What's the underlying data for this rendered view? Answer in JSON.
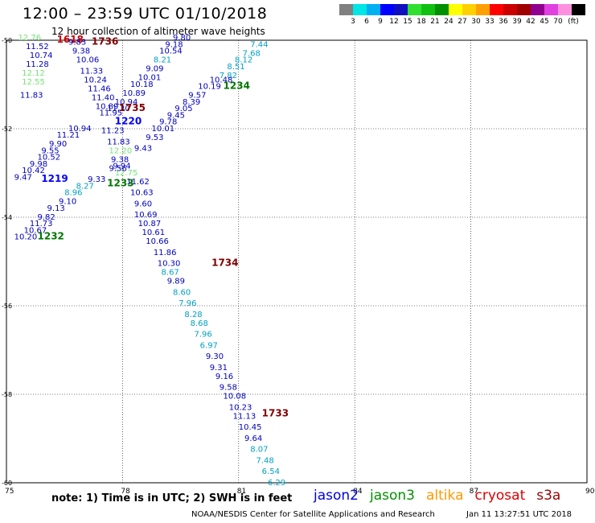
{
  "title": "12:00 – 23:59 UTC 01/10/2018",
  "subtitle": "12 hour collection of altimeter wave heights",
  "colorbar": {
    "colors": [
      "#808080",
      "#00e5e5",
      "#00b0f0",
      "#0000ff",
      "#1010c0",
      "#30e030",
      "#10c010",
      "#009000",
      "#ffff00",
      "#ffd000",
      "#ffa000",
      "#ff0000",
      "#cc0000",
      "#a00000",
      "#900090",
      "#e040e0",
      "#ff90e0",
      "#000000"
    ],
    "labels": [
      "3",
      "6",
      "9",
      "12",
      "15",
      "18",
      "21",
      "24",
      "27",
      "30",
      "33",
      "36",
      "39",
      "42",
      "45",
      "70",
      "(ft)"
    ]
  },
  "map": {
    "x_ticks": [
      "75",
      "78",
      "81",
      "84",
      "87",
      "90"
    ],
    "y_ticks": [
      "-50",
      "-52",
      "-54",
      "-56",
      "-58",
      "-60"
    ]
  },
  "passes": [
    {
      "label": "1618",
      "color": "#cc0000",
      "pos": [
        76.3,
        -50.05
      ],
      "readings": [
        {
          "v": "12.76",
          "c": "#77e077",
          "p": [
            75.3,
            -50.0
          ]
        }
      ]
    },
    {
      "label": "1736",
      "color": "#800000",
      "pos": [
        77.2,
        -50.1
      ],
      "readings": [
        {
          "v": "11.52",
          "c": "#0000bb",
          "p": [
            75.5,
            -50.2
          ]
        },
        {
          "v": "10.74",
          "c": "#0000bb",
          "p": [
            75.6,
            -50.4
          ]
        },
        {
          "v": "11.28",
          "c": "#0000bb",
          "p": [
            75.5,
            -50.6
          ]
        },
        {
          "v": "12.12",
          "c": "#77e077",
          "p": [
            75.4,
            -50.8
          ]
        },
        {
          "v": "12.55",
          "c": "#77e077",
          "p": [
            75.4,
            -51.0
          ]
        },
        {
          "v": "11.83",
          "c": "#0000bb",
          "p": [
            75.35,
            -51.3
          ]
        },
        {
          "v": "9.83",
          "c": "#0000bb",
          "p": [
            76.6,
            -50.1
          ]
        },
        {
          "v": "9.38",
          "c": "#0000bb",
          "p": [
            76.7,
            -50.3
          ]
        },
        {
          "v": "10.06",
          "c": "#0000bb",
          "p": [
            76.8,
            -50.5
          ]
        },
        {
          "v": "11.33",
          "c": "#0000bb",
          "p": [
            76.9,
            -50.75
          ]
        },
        {
          "v": "10.24",
          "c": "#0000bb",
          "p": [
            77.0,
            -50.95
          ]
        },
        {
          "v": "11.46",
          "c": "#0000bb",
          "p": [
            77.1,
            -51.15
          ]
        },
        {
          "v": "11.40",
          "c": "#0000bb",
          "p": [
            77.2,
            -51.35
          ]
        },
        {
          "v": "10.89",
          "c": "#0000bb",
          "p": [
            77.3,
            -51.55
          ]
        },
        {
          "v": "11.95",
          "c": "#0000bb",
          "p": [
            77.4,
            -51.7
          ]
        },
        {
          "v": "11.23",
          "c": "#0000bb",
          "p": [
            77.45,
            -52.1
          ]
        },
        {
          "v": "11.83",
          "c": "#0000bb",
          "p": [
            77.6,
            -52.35
          ]
        },
        {
          "v": "12.20",
          "c": "#77e077",
          "p": [
            77.65,
            -52.55
          ]
        },
        {
          "v": "9.38",
          "c": "#0000bb",
          "p": [
            77.7,
            -52.75
          ]
        },
        {
          "v": "9.94",
          "c": "#0000bb",
          "p": [
            77.75,
            -52.9
          ]
        },
        {
          "v": "12.75",
          "c": "#77e077",
          "p": [
            77.8,
            -53.05
          ]
        },
        {
          "v": "11.62",
          "c": "#0000bb",
          "p": [
            78.1,
            -53.25
          ]
        },
        {
          "v": "10.63",
          "c": "#0000bb",
          "p": [
            78.2,
            -53.5
          ]
        },
        {
          "v": "9.60",
          "c": "#0000bb",
          "p": [
            78.3,
            -53.75
          ]
        },
        {
          "v": "10.69",
          "c": "#0000bb",
          "p": [
            78.3,
            -54.0
          ]
        },
        {
          "v": "10.87",
          "c": "#0000bb",
          "p": [
            78.4,
            -54.2
          ]
        }
      ]
    },
    {
      "label": "1735",
      "color": "#800000",
      "pos": [
        77.9,
        -51.6
      ],
      "readings": [
        {
          "v": "9.80",
          "c": "#0000bb",
          "p": [
            79.3,
            -50.0
          ]
        },
        {
          "v": "9.18",
          "c": "#0000bb",
          "p": [
            79.1,
            -50.15
          ]
        },
        {
          "v": "10.54",
          "c": "#0000bb",
          "p": [
            78.95,
            -50.3
          ]
        },
        {
          "v": "8.21",
          "c": "#00a0c0",
          "p": [
            78.8,
            -50.5
          ]
        },
        {
          "v": "9.09",
          "c": "#0000bb",
          "p": [
            78.6,
            -50.7
          ]
        },
        {
          "v": "10.01",
          "c": "#0000bb",
          "p": [
            78.4,
            -50.9
          ]
        },
        {
          "v": "10.18",
          "c": "#0000bb",
          "p": [
            78.2,
            -51.05
          ]
        },
        {
          "v": "10.89",
          "c": "#0000bb",
          "p": [
            78.0,
            -51.25
          ]
        },
        {
          "v": "10.94",
          "c": "#0000bb",
          "p": [
            77.8,
            -51.45
          ]
        },
        {
          "v": "11.30",
          "c": "#0000bb",
          "p": [
            77.6,
            -51.6
          ]
        }
      ]
    },
    {
      "label": "1220",
      "color": "#0000ff",
      "pos": [
        77.8,
        -51.9
      ],
      "readings": [
        {
          "v": "11.21",
          "c": "#0000bb",
          "p": [
            76.3,
            -52.2
          ]
        },
        {
          "v": "9.90",
          "c": "#0000bb",
          "p": [
            76.1,
            -52.4
          ]
        },
        {
          "v": "9.55",
          "c": "#0000bb",
          "p": [
            75.9,
            -52.55
          ]
        },
        {
          "v": "10.52",
          "c": "#0000bb",
          "p": [
            75.8,
            -52.7
          ]
        },
        {
          "v": "9.98",
          "c": "#0000bb",
          "p": [
            75.6,
            -52.85
          ]
        },
        {
          "v": "10.42",
          "c": "#0000bb",
          "p": [
            75.4,
            -53.0
          ]
        },
        {
          "v": "9.47",
          "c": "#0000bb",
          "p": [
            75.2,
            -53.15
          ]
        },
        {
          "v": "10.94",
          "c": "#0000bb",
          "p": [
            76.6,
            -52.05
          ]
        }
      ]
    },
    {
      "label": "1219",
      "color": "#0000ff",
      "pos": [
        75.9,
        -53.2
      ],
      "readings": []
    },
    {
      "label": "1234",
      "color": "#007700",
      "pos": [
        80.6,
        -51.1
      ],
      "readings": [
        {
          "v": "7.44",
          "c": "#00a0c0",
          "p": [
            81.3,
            -50.15
          ]
        },
        {
          "v": "7.68",
          "c": "#00a0c0",
          "p": [
            81.1,
            -50.35
          ]
        },
        {
          "v": "8.12",
          "c": "#00a0c0",
          "p": [
            80.9,
            -50.5
          ]
        },
        {
          "v": "8.51",
          "c": "#00a0c0",
          "p": [
            80.7,
            -50.65
          ]
        },
        {
          "v": "7.82",
          "c": "#00a0c0",
          "p": [
            80.5,
            -50.85
          ]
        },
        {
          "v": "10.48",
          "c": "#0000bb",
          "p": [
            80.25,
            -50.95
          ]
        },
        {
          "v": "10.19",
          "c": "#0000bb",
          "p": [
            79.95,
            -51.1
          ]
        },
        {
          "v": "9.57",
          "c": "#0000bb",
          "p": [
            79.7,
            -51.3
          ]
        },
        {
          "v": "8.39",
          "c": "#0000bb",
          "p": [
            79.55,
            -51.45
          ]
        },
        {
          "v": "9.05",
          "c": "#0000bb",
          "p": [
            79.35,
            -51.6
          ]
        },
        {
          "v": "9.45",
          "c": "#0000bb",
          "p": [
            79.15,
            -51.75
          ]
        },
        {
          "v": "9.78",
          "c": "#0000bb",
          "p": [
            78.95,
            -51.9
          ]
        },
        {
          "v": "10.01",
          "c": "#0000bb",
          "p": [
            78.75,
            -52.05
          ]
        },
        {
          "v": "9.53",
          "c": "#0000bb",
          "p": [
            78.6,
            -52.25
          ]
        },
        {
          "v": "9.43",
          "c": "#0000bb",
          "p": [
            78.3,
            -52.5
          ]
        },
        {
          "v": "9.56",
          "c": "#0000bb",
          "p": [
            77.65,
            -52.95
          ]
        }
      ]
    },
    {
      "label": "1233",
      "color": "#007700",
      "pos": [
        77.6,
        -53.3
      ],
      "readings": [
        {
          "v": "9.33",
          "c": "#0000bb",
          "p": [
            77.1,
            -53.2
          ]
        },
        {
          "v": "8.27",
          "c": "#00a0c0",
          "p": [
            76.8,
            -53.35
          ]
        },
        {
          "v": "8.96",
          "c": "#00a0c0",
          "p": [
            76.5,
            -53.5
          ]
        },
        {
          "v": "9.10",
          "c": "#0000bb",
          "p": [
            76.35,
            -53.7
          ]
        },
        {
          "v": "9.13",
          "c": "#0000bb",
          "p": [
            76.05,
            -53.85
          ]
        },
        {
          "v": "9.82",
          "c": "#0000bb",
          "p": [
            75.8,
            -54.05
          ]
        },
        {
          "v": "11.73",
          "c": "#0000bb",
          "p": [
            75.6,
            -54.2
          ]
        },
        {
          "v": "10.67",
          "c": "#0000bb",
          "p": [
            75.45,
            -54.35
          ]
        },
        {
          "v": "10.20",
          "c": "#0000bb",
          "p": [
            75.2,
            -54.5
          ]
        }
      ]
    },
    {
      "label": "1232",
      "color": "#007700",
      "pos": [
        75.8,
        -54.5
      ],
      "readings": []
    },
    {
      "label": "1734",
      "color": "#800000",
      "pos": [
        80.3,
        -55.1
      ],
      "readings": [
        {
          "v": "10.61",
          "c": "#0000bb",
          "p": [
            78.5,
            -54.4
          ]
        },
        {
          "v": "10.66",
          "c": "#0000bb",
          "p": [
            78.6,
            -54.6
          ]
        },
        {
          "v": "11.86",
          "c": "#0000bb",
          "p": [
            78.8,
            -54.85
          ]
        },
        {
          "v": "10.30",
          "c": "#0000bb",
          "p": [
            78.9,
            -55.1
          ]
        },
        {
          "v": "8.67",
          "c": "#00a0c0",
          "p": [
            79.0,
            -55.3
          ]
        },
        {
          "v": "9.89",
          "c": "#0000bb",
          "p": [
            79.15,
            -55.5
          ]
        },
        {
          "v": "8.60",
          "c": "#00a0c0",
          "p": [
            79.3,
            -55.75
          ]
        },
        {
          "v": "7.96",
          "c": "#00a0c0",
          "p": [
            79.45,
            -56.0
          ]
        },
        {
          "v": "8.28",
          "c": "#00a0c0",
          "p": [
            79.6,
            -56.25
          ]
        },
        {
          "v": "8.68",
          "c": "#00a0c0",
          "p": [
            79.75,
            -56.45
          ]
        },
        {
          "v": "7.96",
          "c": "#00a0c0",
          "p": [
            79.85,
            -56.7
          ]
        },
        {
          "v": "6.97",
          "c": "#00a0c0",
          "p": [
            80.0,
            -56.95
          ]
        },
        {
          "v": "9.30",
          "c": "#0000bb",
          "p": [
            80.15,
            -57.2
          ]
        },
        {
          "v": "9.31",
          "c": "#0000bb",
          "p": [
            80.25,
            -57.45
          ]
        },
        {
          "v": "9.16",
          "c": "#0000bb",
          "p": [
            80.4,
            -57.65
          ]
        },
        {
          "v": "9.58",
          "c": "#0000bb",
          "p": [
            80.5,
            -57.9
          ]
        }
      ]
    },
    {
      "label": "1733",
      "color": "#800000",
      "pos": [
        81.6,
        -58.5
      ],
      "readings": [
        {
          "v": "10.08",
          "c": "#0000bb",
          "p": [
            80.6,
            -58.1
          ]
        },
        {
          "v": "10.23",
          "c": "#0000bb",
          "p": [
            80.75,
            -58.35
          ]
        },
        {
          "v": "11.13",
          "c": "#0000bb",
          "p": [
            80.85,
            -58.55
          ]
        },
        {
          "v": "10.45",
          "c": "#0000bb",
          "p": [
            81.0,
            -58.8
          ]
        },
        {
          "v": "9.64",
          "c": "#0000bb",
          "p": [
            81.15,
            -59.05
          ]
        },
        {
          "v": "8.07",
          "c": "#00a0c0",
          "p": [
            81.3,
            -59.3
          ]
        },
        {
          "v": "7.48",
          "c": "#00a0c0",
          "p": [
            81.45,
            -59.55
          ]
        },
        {
          "v": "6.54",
          "c": "#00a0c0",
          "p": [
            81.6,
            -59.8
          ]
        },
        {
          "v": "6.29",
          "c": "#00a0c0",
          "p": [
            81.75,
            -60.05
          ]
        }
      ]
    }
  ],
  "footer_note": "note:  1) Time is in UTC;  2) SWH is in feet",
  "legend": [
    {
      "name": "jason2",
      "color": "#0000dd"
    },
    {
      "name": "jason3",
      "color": "#009000"
    },
    {
      "name": "altika",
      "color": "#ff9900"
    },
    {
      "name": "cryosat",
      "color": "#dd0000"
    },
    {
      "name": "s3a",
      "color": "#990000"
    }
  ],
  "credit": "NOAA/NESDIS Center for Satellite Applications and Research",
  "timestamp": "Jan 11 13:27:51 UTC 2018"
}
